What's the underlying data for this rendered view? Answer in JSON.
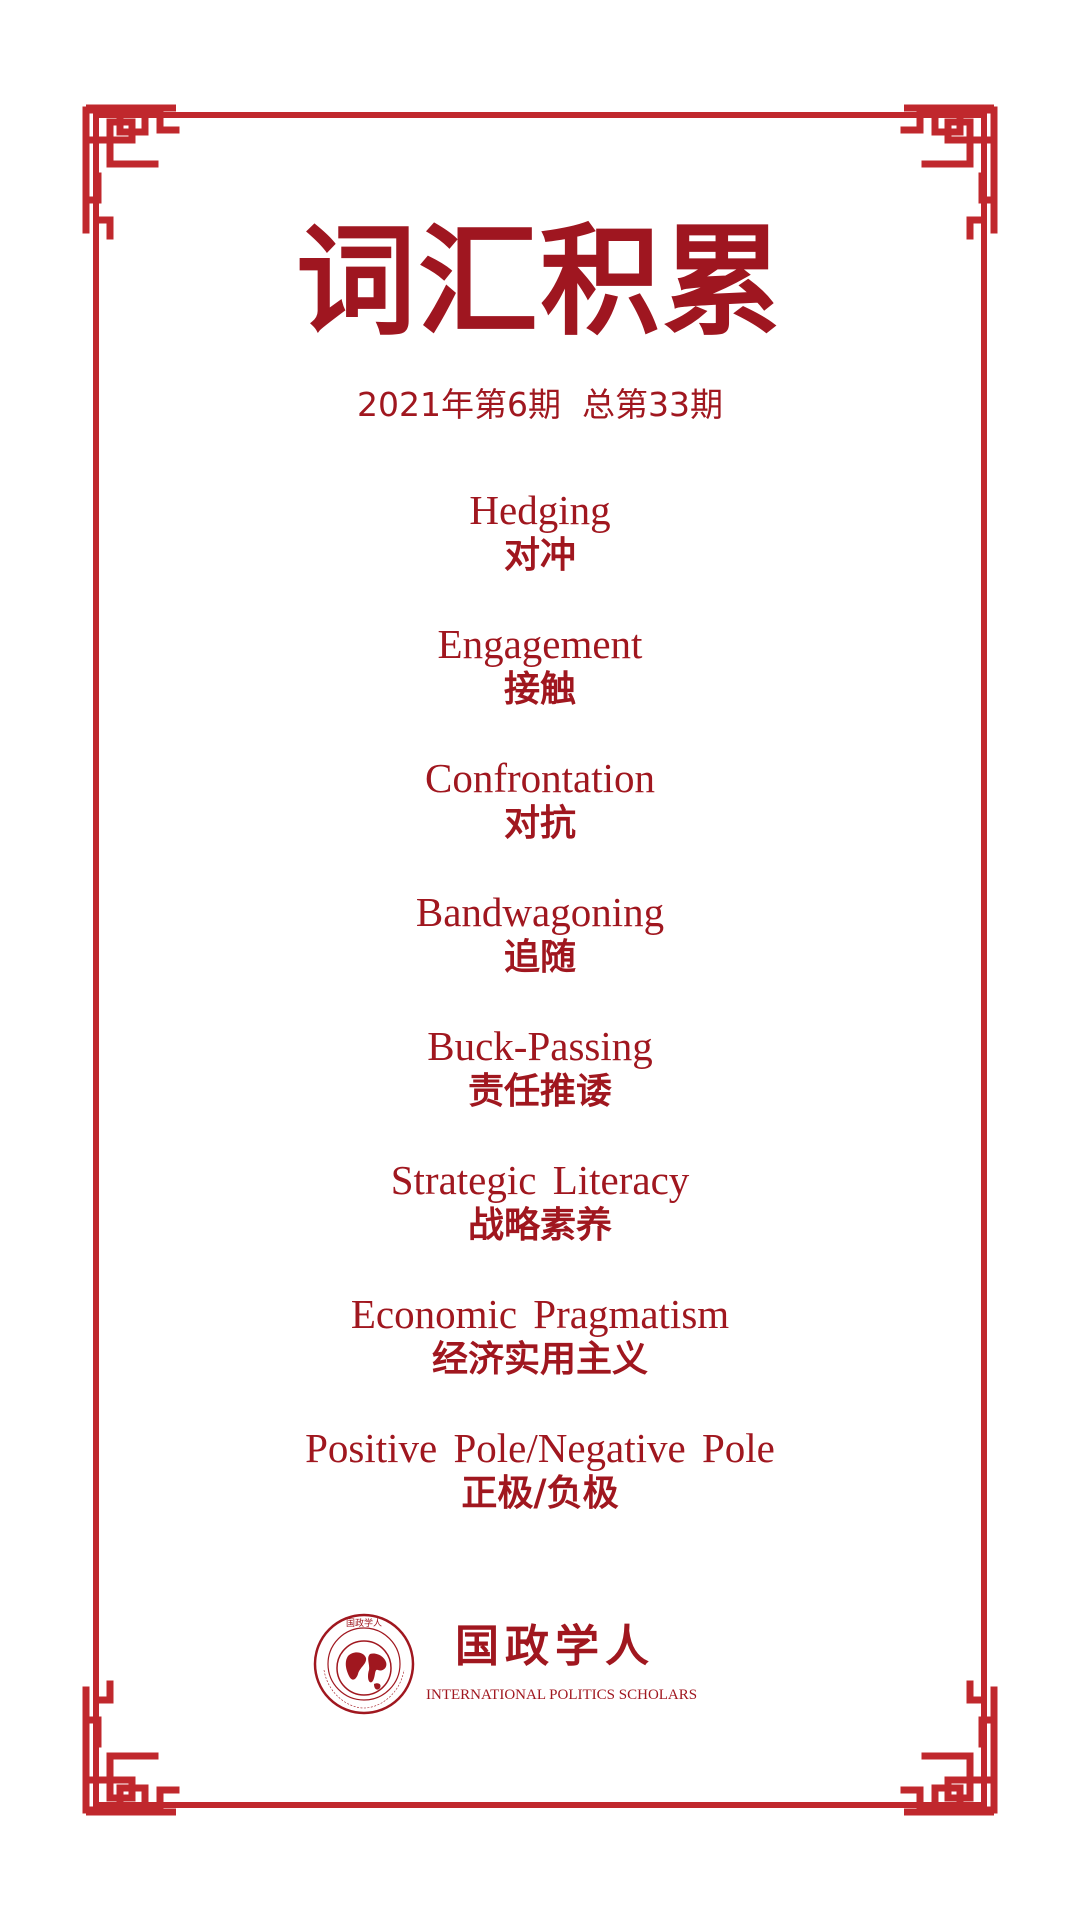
{
  "title": "词汇积累",
  "issue": "2021年第6期  总第33期",
  "terms": [
    {
      "en": "Hedging",
      "zh": "对冲"
    },
    {
      "en": "Engagement",
      "zh": "接触"
    },
    {
      "en": "Confrontation",
      "zh": "对抗"
    },
    {
      "en": "Bandwagoning",
      "zh": "追随"
    },
    {
      "en": "Buck-Passing",
      "zh": "责任推诿"
    },
    {
      "en": "Strategic Literacy",
      "zh": "战略素养"
    },
    {
      "en": "Economic Pragmatism",
      "zh": "经济实用主义"
    },
    {
      "en": "Positive Pole/Negative Pole",
      "zh": "正极/负极"
    }
  ],
  "logo": {
    "name": "国政学人",
    "subtitle": "INTERNATIONAL POLITICS SCHOLARS",
    "seal_text": "国政学人",
    "seal_ring_text": "INTERNATIONAL POLITICS SCHOLARS"
  },
  "colors": {
    "accent": "#a0171f",
    "frame": "#c0282d",
    "background": "#ffffff"
  }
}
